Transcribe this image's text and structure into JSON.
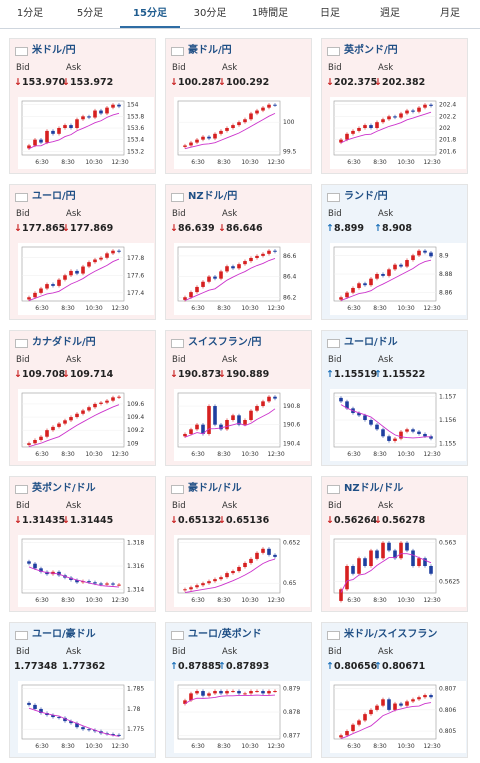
{
  "tabs": [
    "1分足",
    "5分足",
    "15分足",
    "30分足",
    "1時間足",
    "日足",
    "週足",
    "月足"
  ],
  "active_tab": 2,
  "bid_label": "Bid",
  "ask_label": "Ask",
  "x_ticks": [
    "6:30",
    "8:30",
    "10:30",
    "12:30"
  ],
  "colors": {
    "down_bg": "#fcefef",
    "up_bg": "#eef4fa",
    "down_arrow": "#c81e1e",
    "up_arrow": "#1a6fb8",
    "candle_up": "#d62020",
    "candle_down": "#1f3fa0",
    "ma": "#cc33cc"
  },
  "pairs": [
    {
      "name": "米ドル/円",
      "flag": "us-jp-flag-icon",
      "dir": "down",
      "bid": "153.970",
      "ask": "153.972",
      "y_ticks": [
        "154",
        "153.8",
        "153.6",
        "153.4",
        "153.2"
      ],
      "series": [
        153.3,
        153.4,
        153.35,
        153.55,
        153.5,
        153.6,
        153.65,
        153.6,
        153.75,
        153.8,
        153.78,
        153.9,
        153.85,
        153.95,
        154.0,
        153.97
      ]
    },
    {
      "name": "豪ドル/円",
      "flag": "au-jp-flag-icon",
      "dir": "down",
      "bid": "100.287",
      "ask": "100.292",
      "y_ticks": [
        "100",
        "99.5"
      ],
      "series": [
        99.6,
        99.65,
        99.7,
        99.75,
        99.72,
        99.8,
        99.85,
        99.9,
        99.95,
        100.0,
        100.05,
        100.15,
        100.2,
        100.25,
        100.3,
        100.29
      ]
    },
    {
      "name": "英ポンド/円",
      "flag": "gb-jp-flag-icon",
      "dir": "down",
      "bid": "202.375",
      "ask": "202.382",
      "y_ticks": [
        "202.4",
        "202.2",
        "202",
        "201.8",
        "201.6"
      ],
      "series": [
        201.8,
        201.9,
        201.95,
        202.0,
        202.05,
        202.0,
        202.1,
        202.15,
        202.2,
        202.18,
        202.25,
        202.3,
        202.28,
        202.35,
        202.4,
        202.38
      ]
    },
    {
      "name": "ユーロ/円",
      "flag": "eu-jp-flag-icon",
      "dir": "down",
      "bid": "177.865",
      "ask": "177.869",
      "y_ticks": [
        "177.8",
        "177.6",
        "177.4"
      ],
      "series": [
        177.35,
        177.4,
        177.45,
        177.5,
        177.48,
        177.55,
        177.6,
        177.65,
        177.62,
        177.7,
        177.75,
        177.78,
        177.8,
        177.85,
        177.88,
        177.87
      ]
    },
    {
      "name": "NZドル/円",
      "flag": "nz-jp-flag-icon",
      "dir": "down",
      "bid": "86.639",
      "ask": "86.646",
      "y_ticks": [
        "86.6",
        "86.4",
        "86.2"
      ],
      "series": [
        86.2,
        86.25,
        86.3,
        86.35,
        86.4,
        86.38,
        86.45,
        86.5,
        86.48,
        86.52,
        86.55,
        86.58,
        86.6,
        86.62,
        86.65,
        86.64
      ]
    },
    {
      "name": "ランド/円",
      "flag": "za-jp-flag-icon",
      "dir": "up",
      "bid": "8.899",
      "ask": "8.908",
      "y_ticks": [
        "8.9",
        "8.88",
        "8.86"
      ],
      "series": [
        8.855,
        8.86,
        8.865,
        8.87,
        8.868,
        8.875,
        8.88,
        8.878,
        8.885,
        8.89,
        8.888,
        8.895,
        8.9,
        8.905,
        8.903,
        8.899
      ]
    },
    {
      "name": "カナダドル/円",
      "flag": "ca-jp-flag-icon",
      "dir": "down",
      "bid": "109.708",
      "ask": "109.714",
      "y_ticks": [
        "109.6",
        "109.4",
        "109.2",
        "109"
      ],
      "series": [
        109.0,
        109.05,
        109.1,
        109.2,
        109.25,
        109.3,
        109.35,
        109.4,
        109.45,
        109.5,
        109.55,
        109.6,
        109.62,
        109.65,
        109.7,
        109.71
      ]
    },
    {
      "name": "スイスフラン/円",
      "flag": "ch-jp-flag-icon",
      "dir": "down",
      "bid": "190.873",
      "ask": "190.889",
      "y_ticks": [
        "190.8",
        "190.6",
        "190.4"
      ],
      "series": [
        190.5,
        190.55,
        190.6,
        190.5,
        190.8,
        190.6,
        190.55,
        190.65,
        190.7,
        190.6,
        190.65,
        190.75,
        190.8,
        190.85,
        190.9,
        190.88
      ]
    },
    {
      "name": "ユーロ/ドル",
      "flag": "eu-us-flag-icon",
      "dir": "up",
      "bid": "1.15519",
      "ask": "1.15522",
      "y_ticks": [
        "1.157",
        "1.156",
        "1.155"
      ],
      "series": [
        1.1568,
        1.1565,
        1.1563,
        1.1562,
        1.156,
        1.1558,
        1.1556,
        1.1553,
        1.1551,
        1.1552,
        1.1555,
        1.1556,
        1.1555,
        1.1554,
        1.1553,
        1.1552
      ]
    },
    {
      "name": "英ポンド/ドル",
      "flag": "gb-us-flag-icon",
      "dir": "down",
      "bid": "1.31435",
      "ask": "1.31445",
      "y_ticks": [
        "1.318",
        "1.316",
        "1.314"
      ],
      "series": [
        1.3162,
        1.3158,
        1.3155,
        1.3153,
        1.3155,
        1.3152,
        1.315,
        1.3148,
        1.3146,
        1.3147,
        1.3146,
        1.3145,
        1.3144,
        1.3145,
        1.3144,
        1.3144
      ]
    },
    {
      "name": "豪ドル/ドル",
      "flag": "au-us-flag-icon",
      "dir": "down",
      "bid": "0.65132",
      "ask": "0.65136",
      "y_ticks": [
        "0.652",
        "0.65"
      ],
      "series": [
        0.6497,
        0.6498,
        0.6499,
        0.65,
        0.6501,
        0.6502,
        0.6503,
        0.6505,
        0.6506,
        0.6508,
        0.651,
        0.6512,
        0.6515,
        0.6517,
        0.6514,
        0.6513
      ]
    },
    {
      "name": "NZドル/ドル",
      "flag": "nz-us-flag-icon",
      "dir": "down",
      "bid": "0.56264",
      "ask": "0.56278",
      "y_ticks": [
        "0.563",
        "0.5625"
      ],
      "series": [
        0.5624,
        0.5627,
        0.5626,
        0.5628,
        0.5627,
        0.5629,
        0.5628,
        0.563,
        0.5629,
        0.5628,
        0.563,
        0.5629,
        0.5627,
        0.5628,
        0.5627,
        0.5626
      ]
    },
    {
      "name": "ユーロ/豪ドル",
      "flag": "eu-au-flag-icon",
      "dir": "neutral",
      "bid": "1.77348",
      "ask": "1.77362",
      "y_ticks": [
        "1.785",
        "1.78",
        "1.775"
      ],
      "series": [
        1.781,
        1.78,
        1.779,
        1.7785,
        1.778,
        1.7778,
        1.777,
        1.7765,
        1.7755,
        1.775,
        1.7748,
        1.7745,
        1.774,
        1.7738,
        1.7736,
        1.7735
      ]
    },
    {
      "name": "ユーロ/英ポンド",
      "flag": "eu-gb-flag-icon",
      "dir": "up",
      "bid": "0.87885",
      "ask": "0.87893",
      "y_ticks": [
        "0.879",
        "0.878",
        "0.877"
      ],
      "series": [
        0.8785,
        0.8788,
        0.8789,
        0.8787,
        0.8788,
        0.8789,
        0.8788,
        0.8789,
        0.8789,
        0.8788,
        0.8788,
        0.8789,
        0.8789,
        0.8788,
        0.8789,
        0.8789
      ]
    },
    {
      "name": "米ドル/スイスフラン",
      "flag": "us-ch-flag-icon",
      "dir": "up",
      "bid": "0.80656",
      "ask": "0.80671",
      "y_ticks": [
        "0.807",
        "0.806",
        "0.805"
      ],
      "series": [
        0.8048,
        0.805,
        0.8053,
        0.8055,
        0.8058,
        0.806,
        0.8062,
        0.8065,
        0.806,
        0.8063,
        0.8062,
        0.8064,
        0.8065,
        0.8066,
        0.8067,
        0.8066
      ]
    }
  ]
}
